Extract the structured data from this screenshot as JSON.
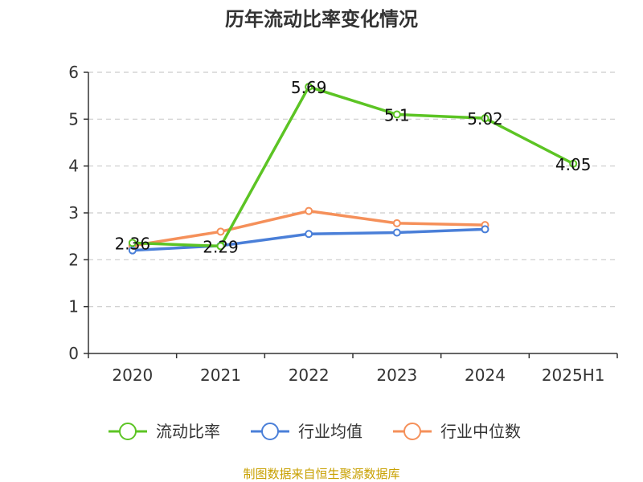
{
  "chart_data": {
    "type": "line",
    "title": "历年流动比率变化情况",
    "categories": [
      "2020",
      "2021",
      "2022",
      "2023",
      "2024",
      "2025H1"
    ],
    "ylim": [
      0,
      6
    ],
    "yticks": [
      "0",
      "1",
      "2",
      "3",
      "4",
      "5",
      "6"
    ],
    "grid": true,
    "legend_position": "bottom",
    "series": [
      {
        "name": "流动比率",
        "color": "#5cc424",
        "values": [
          2.36,
          2.29,
          5.69,
          5.1,
          5.02,
          4.05
        ],
        "labels": [
          "2.36",
          "2.29",
          "5.69",
          "5.1",
          "5.02",
          "4.05"
        ]
      },
      {
        "name": "行业均值",
        "color": "#4a7fd8",
        "values": [
          2.2,
          2.3,
          2.55,
          2.58,
          2.65,
          null
        ]
      },
      {
        "name": "行业中位数",
        "color": "#f5905a",
        "values": [
          2.3,
          2.6,
          3.04,
          2.78,
          2.74,
          null
        ]
      }
    ]
  },
  "source": "制图数据来自恒生聚源数据库"
}
